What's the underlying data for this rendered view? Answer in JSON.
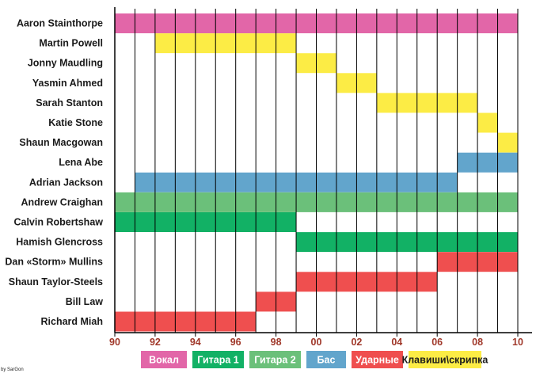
{
  "chart_data": {
    "type": "timeline",
    "x_range": [
      1990,
      2010
    ],
    "x_ticks": [
      {
        "value": 1990,
        "label": "90"
      },
      {
        "value": 1992,
        "label": "92"
      },
      {
        "value": 1994,
        "label": "94"
      },
      {
        "value": 1996,
        "label": "96"
      },
      {
        "value": 1998,
        "label": "98"
      },
      {
        "value": 2000,
        "label": "00"
      },
      {
        "value": 2002,
        "label": "02"
      },
      {
        "value": 2004,
        "label": "04"
      },
      {
        "value": 2006,
        "label": "06"
      },
      {
        "value": 2008,
        "label": "08"
      },
      {
        "value": 2010,
        "label": "10"
      }
    ],
    "grid": true,
    "legend_position": "bottom",
    "roles": [
      {
        "key": "vocal",
        "name": "Вокал",
        "color": "#e266a8",
        "text_color": "#ffffff"
      },
      {
        "key": "guitar1",
        "name": "Гитара 1",
        "color": "#12b165",
        "text_color": "#ffffff"
      },
      {
        "key": "guitar2",
        "name": "Гитара 2",
        "color": "#6bc07a",
        "text_color": "#ffffff"
      },
      {
        "key": "bass",
        "name": "Бас",
        "color": "#62a5cc",
        "text_color": "#ffffff"
      },
      {
        "key": "drums",
        "name": "Ударные",
        "color": "#ef4f4f",
        "text_color": "#ffffff"
      },
      {
        "key": "keys",
        "name": "Клавиши\\скрипка",
        "color": "#fcec45",
        "text_color": "#1a1a1a"
      }
    ],
    "members": [
      {
        "name": "Aaron Stainthorpe",
        "role": "vocal",
        "start": 1990,
        "end": 2010
      },
      {
        "name": "Martin Powell",
        "role": "keys",
        "start": 1992,
        "end": 1999
      },
      {
        "name": "Jonny Maudling",
        "role": "keys",
        "start": 1999,
        "end": 2001
      },
      {
        "name": "Yasmin Ahmed",
        "role": "keys",
        "start": 2001,
        "end": 2003
      },
      {
        "name": "Sarah Stanton",
        "role": "keys",
        "start": 2003,
        "end": 2008
      },
      {
        "name": "Katie Stone",
        "role": "keys",
        "start": 2008,
        "end": 2009
      },
      {
        "name": "Shaun Macgowan",
        "role": "keys",
        "start": 2009,
        "end": 2010
      },
      {
        "name": "Lena Abe",
        "role": "bass",
        "start": 2007,
        "end": 2010
      },
      {
        "name": "Adrian Jackson",
        "role": "bass",
        "start": 1991,
        "end": 2007
      },
      {
        "name": "Andrew Craighan",
        "role": "guitar2",
        "start": 1990,
        "end": 2010
      },
      {
        "name": "Calvin Robertshaw",
        "role": "guitar1",
        "start": 1990,
        "end": 1999
      },
      {
        "name": "Hamish Glencross",
        "role": "guitar1",
        "start": 1999,
        "end": 2010
      },
      {
        "name": "Dan «Storm» Mullins",
        "role": "drums",
        "start": 2006,
        "end": 2010
      },
      {
        "name": "Shaun Taylor-Steels",
        "role": "drums",
        "start": 1999,
        "end": 2006
      },
      {
        "name": "Bill Law",
        "role": "drums",
        "start": 1997,
        "end": 1999
      },
      {
        "name": "Richard Miah",
        "role": "drums",
        "start": 1990,
        "end": 1997
      }
    ]
  },
  "credit": "by SarGon"
}
